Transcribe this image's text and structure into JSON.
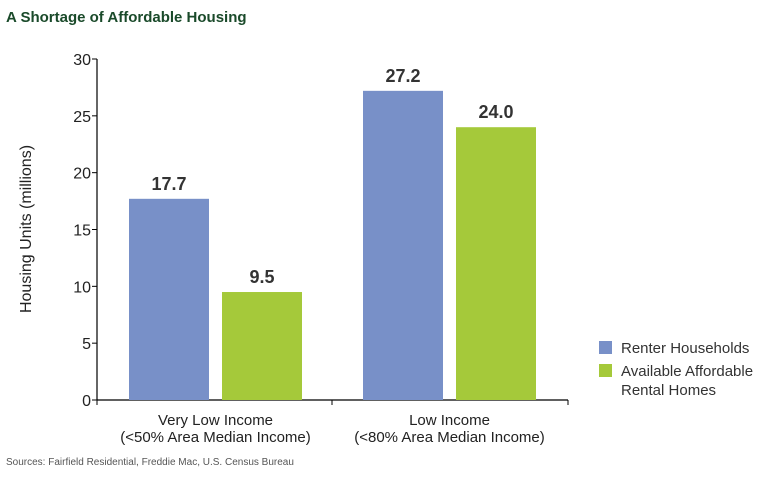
{
  "chart_data": {
    "type": "bar",
    "title": "A Shortage of Affordable Housing",
    "ylabel": "Housing Units (millions)",
    "ylim": [
      0,
      30
    ],
    "yticks": [
      0,
      5,
      10,
      15,
      20,
      25,
      30
    ],
    "categories": [
      [
        "Very Low Income",
        "(<50% Area Median Income)"
      ],
      [
        "Low Income",
        "(<80% Area Median Income)"
      ]
    ],
    "series": [
      {
        "name": "Renter Households",
        "values": [
          17.7,
          27.2
        ],
        "labels": [
          "17.7",
          "27.2"
        ],
        "color": "#7890C8"
      },
      {
        "name": "Available Affordable Rental Homes",
        "name_lines": [
          "Available Affordable",
          "Rental Homes"
        ],
        "values": [
          9.5,
          24.0
        ],
        "labels": [
          "9.5",
          "24.0"
        ],
        "color": "#A5C93A"
      }
    ],
    "legend_position": "right",
    "grid": false,
    "source": "Sources: Fairfield Residential, Freddie Mac, U.S. Census Bureau",
    "title_color": "#1A4A2A"
  }
}
